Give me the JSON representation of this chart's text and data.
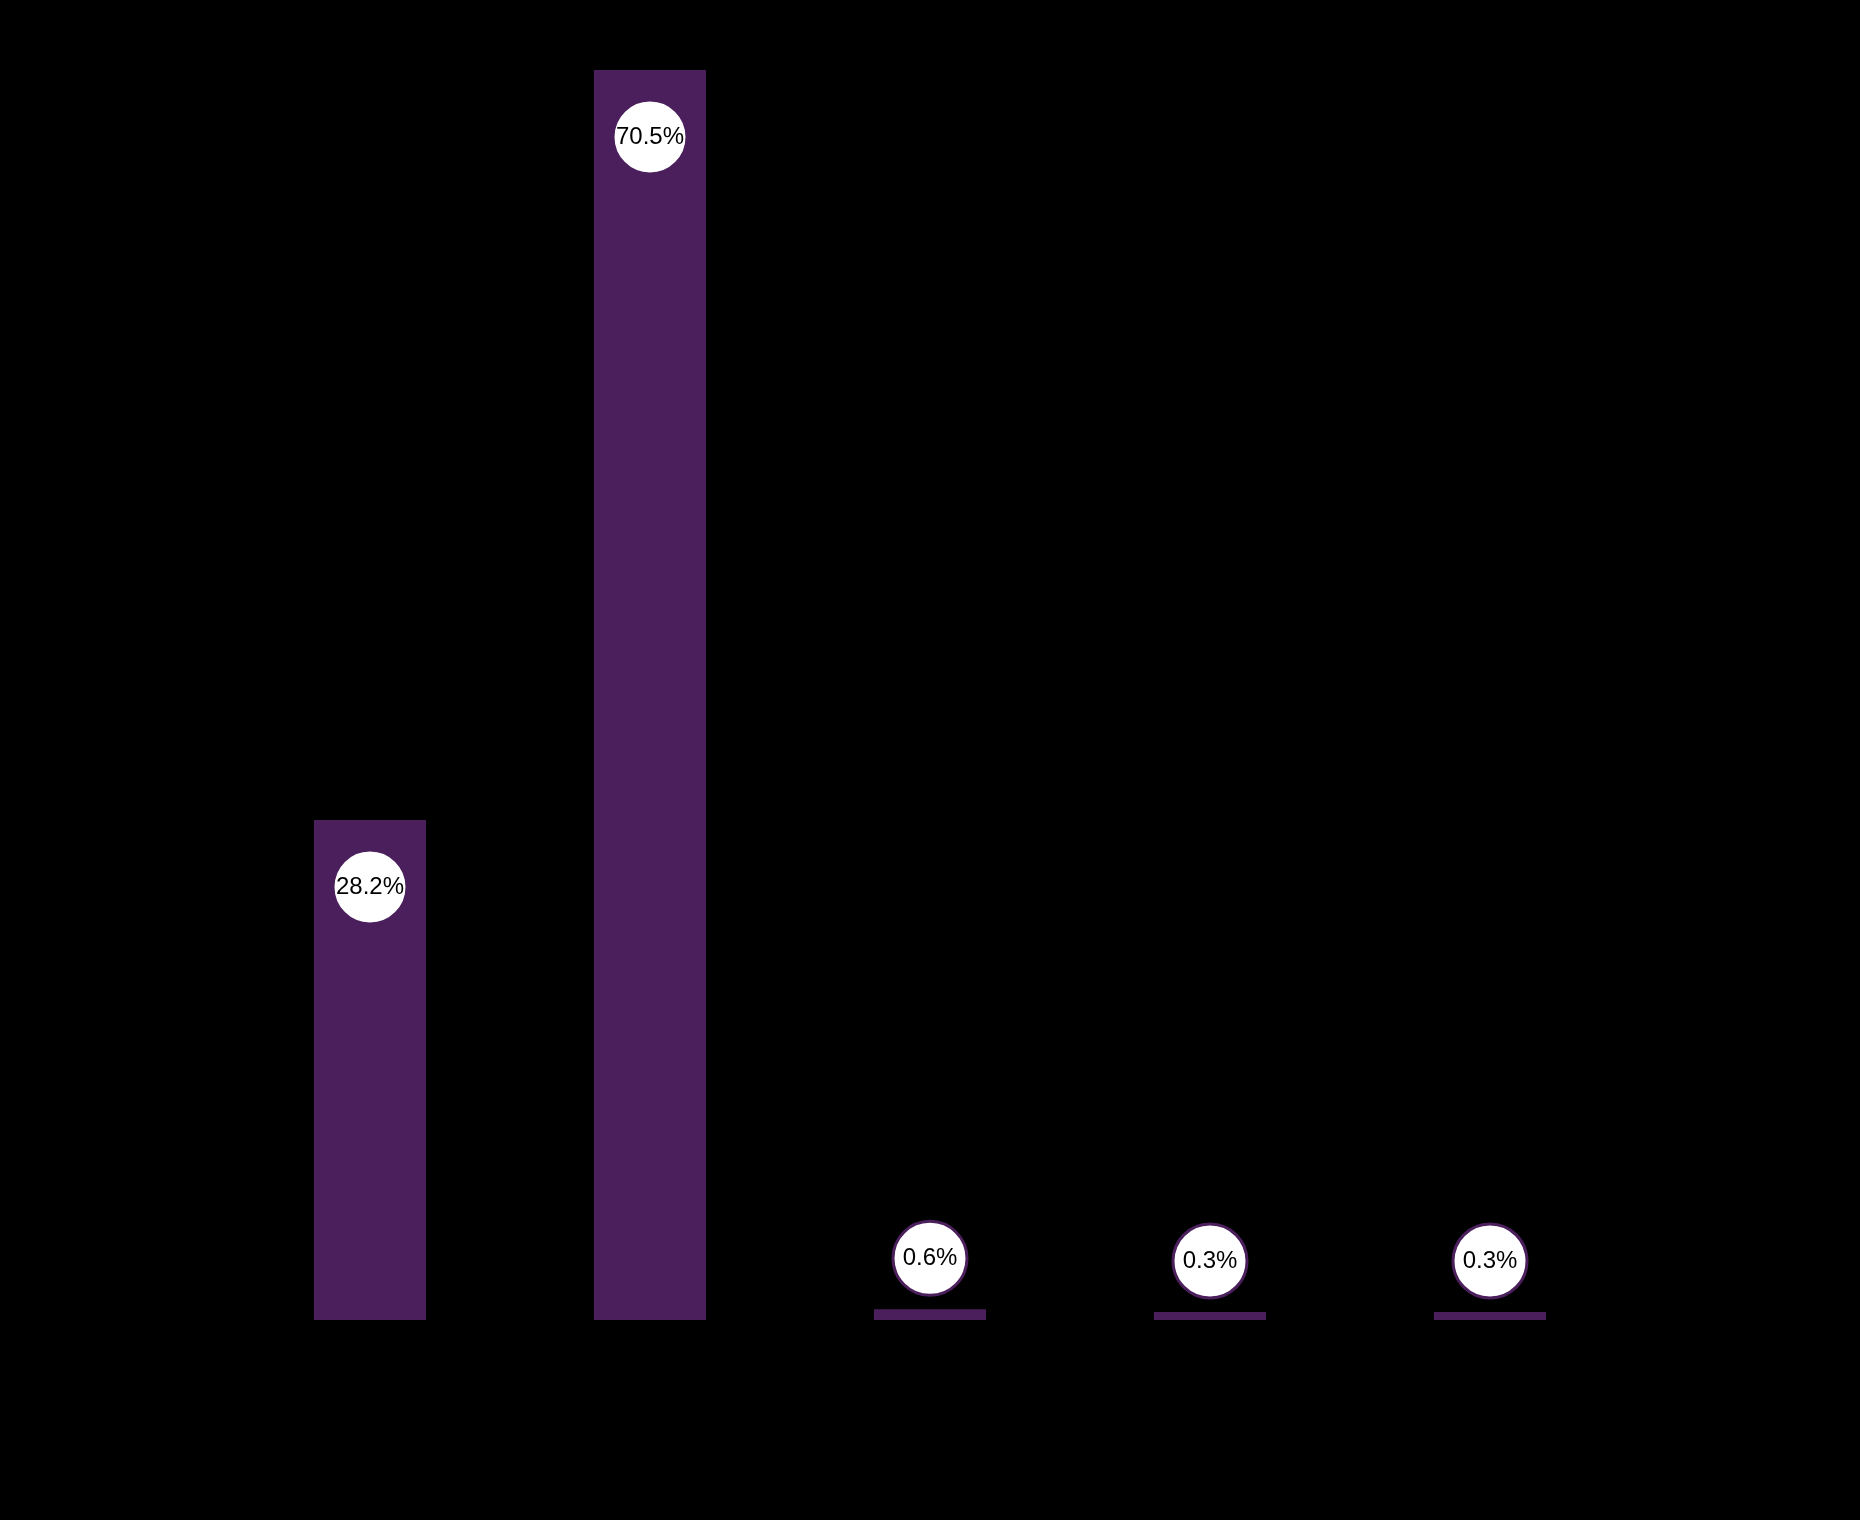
{
  "chart_data": {
    "type": "bar",
    "categories": [
      null,
      null,
      null,
      null,
      null
    ],
    "values": [
      28.2,
      70.5,
      0.6,
      0.3,
      0.3
    ],
    "value_labels": [
      "28.2%",
      "70.5%",
      "0.6%",
      "0.3%",
      "0.3%"
    ],
    "color": "#4a1f5c"
  }
}
